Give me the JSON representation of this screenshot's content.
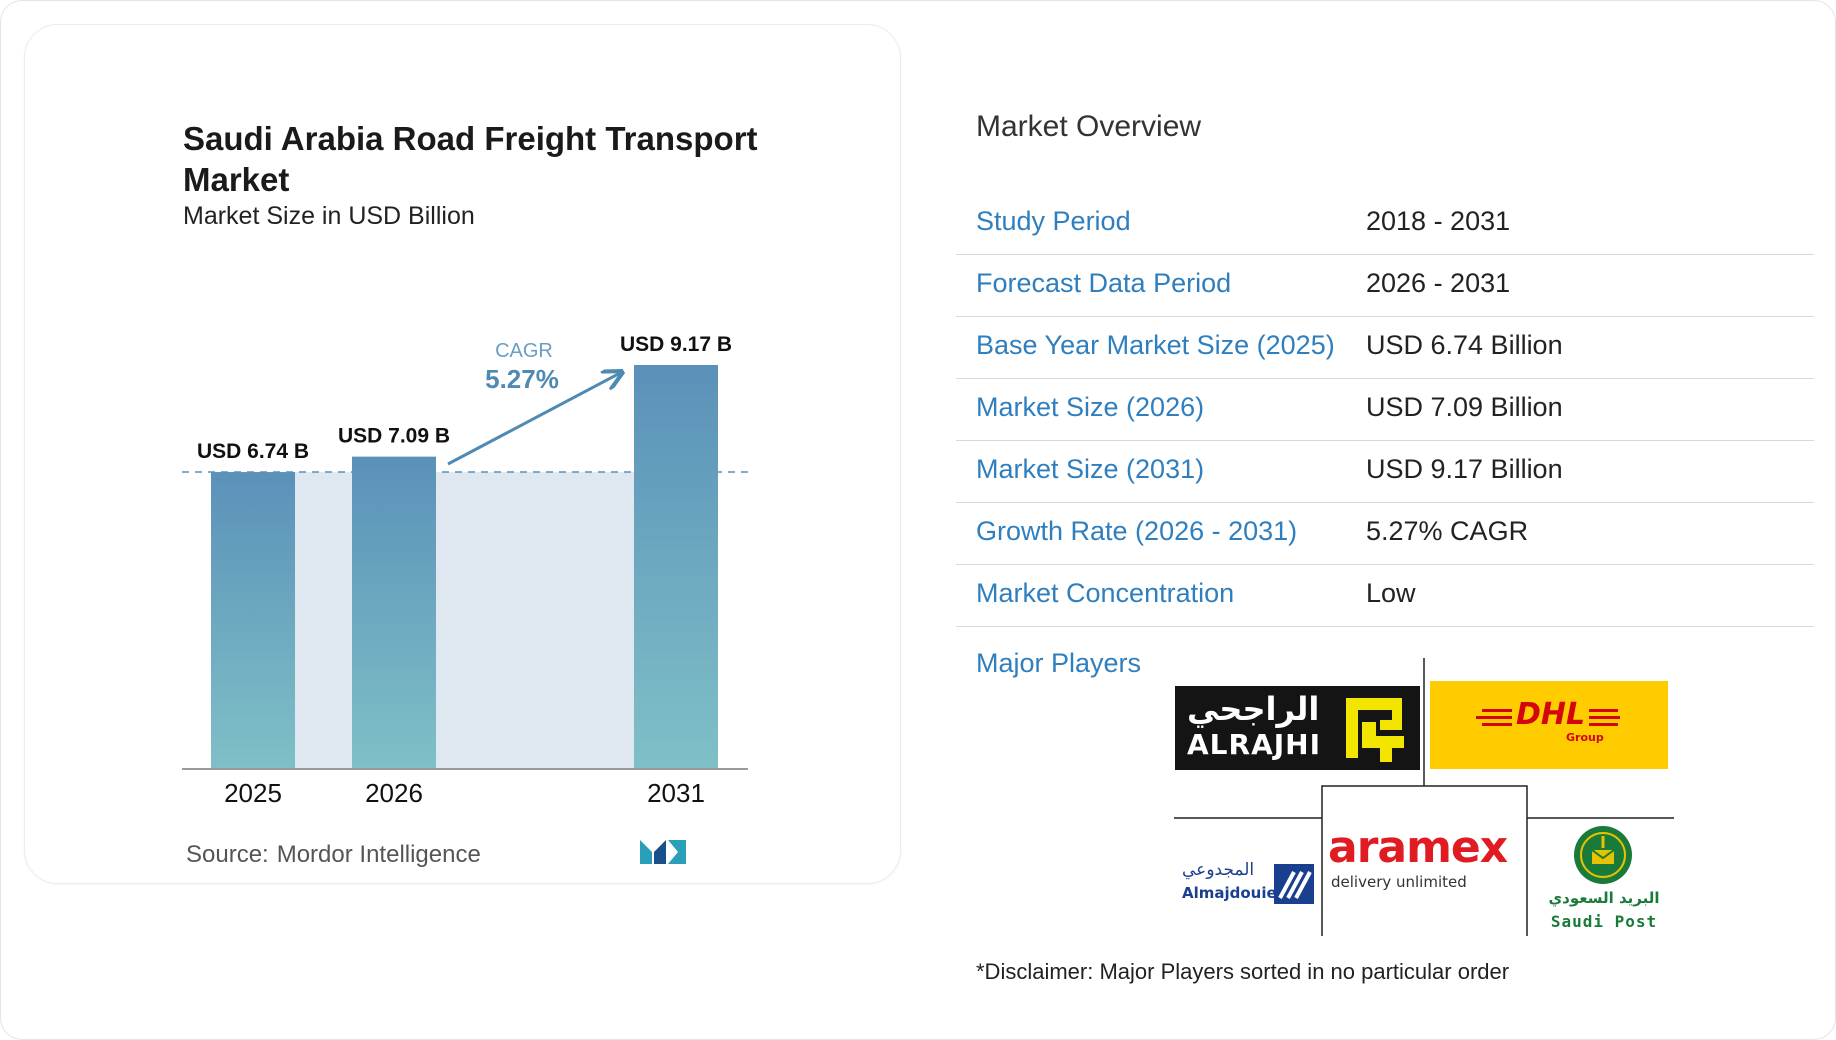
{
  "chart_data": {
    "type": "bar",
    "title": "Saudi Arabia Road Freight Transport Market",
    "subtitle": "Market Size in USD Billion",
    "categories": [
      "2025",
      "2026",
      "2031"
    ],
    "values": [
      6.74,
      7.09,
      9.17
    ],
    "data_labels": [
      "USD 6.74 B",
      "USD 7.09 B",
      "USD 9.17 B"
    ],
    "annotation": {
      "label": "CAGR",
      "value": "5.27%"
    },
    "ylim": [
      0,
      9.17
    ],
    "grid": false,
    "colors": {
      "bar_top": "#5b91b9",
      "bar_bottom": "#7fc0c7",
      "band": "#dfe8f0",
      "arrow": "#4f8ab3",
      "dashed": "#5b8fb5"
    }
  },
  "source": {
    "label": "Source:",
    "name": "Mordor Intelligence"
  },
  "overview": {
    "title": "Market Overview",
    "rows": [
      {
        "label": "Study Period",
        "value": "2018 - 2031"
      },
      {
        "label": "Forecast Data Period",
        "value": "2026 - 2031"
      },
      {
        "label": "Base Year Market Size (2025)",
        "value": "USD 6.74 Billion"
      },
      {
        "label": "Market Size (2026)",
        "value": "USD 7.09 Billion"
      },
      {
        "label": "Market Size (2031)",
        "value": "USD 9.17 Billion"
      },
      {
        "label": "Growth Rate (2026 - 2031)",
        "value": "5.27% CAGR"
      },
      {
        "label": "Market Concentration",
        "value": "Low"
      }
    ]
  },
  "players": {
    "title": "Major Players",
    "logos": {
      "alrajhi": {
        "arabic": "الراجحي",
        "latin": "ALRAJHI"
      },
      "dhl": {
        "word": "DHL",
        "sub": "Group"
      },
      "almajdouie": {
        "arabic": "المجدوعي",
        "latin": "Almajdouie"
      },
      "aramex": {
        "word": "aramex",
        "tagline": "delivery unlimited"
      },
      "saudipost": {
        "arabic": "البريد السعودي",
        "latin": "Saudi Post"
      }
    },
    "disclaimer": "*Disclaimer: Major Players sorted in no particular order"
  },
  "brand": {
    "accent": "#2f7fbf"
  }
}
